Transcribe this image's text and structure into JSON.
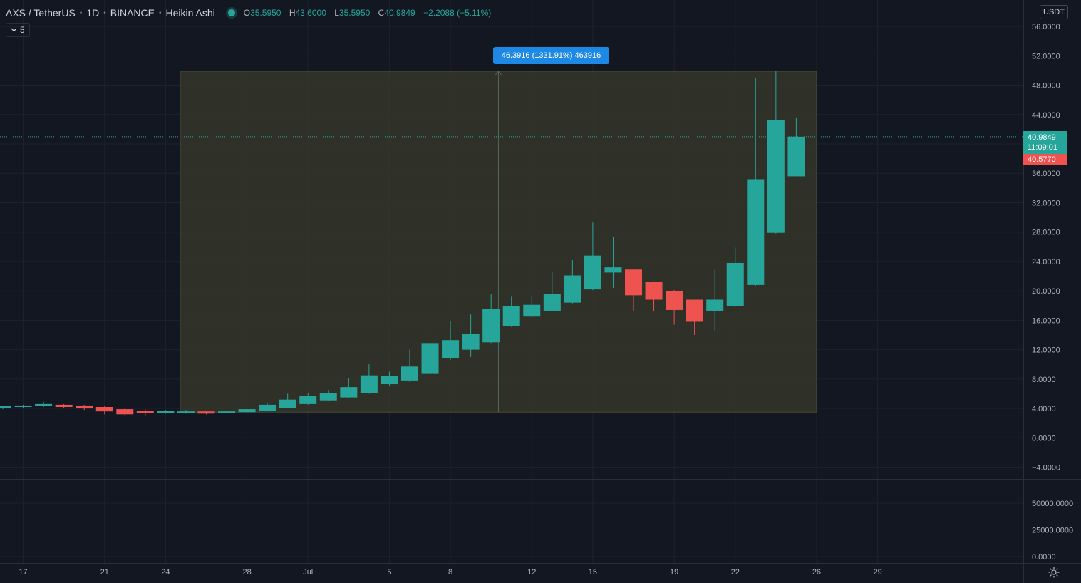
{
  "header": {
    "symbol": "AXS / TetherUS",
    "interval": "1D",
    "exchange": "BINANCE",
    "chart_style": "Heikin Ashi",
    "open_label": "O",
    "open": "35.5950",
    "high_label": "H",
    "high": "43.6000",
    "low_label": "L",
    "low": "35.5950",
    "close_label": "C",
    "close": "40.9849",
    "change": "−2.2088 (−5.11%)"
  },
  "collapse_button": {
    "icon": "chevron-down-icon",
    "count": "5"
  },
  "currency_button": "USDT",
  "measure_label": "46.3916 (1331.91%) 463916",
  "last_price_tag": {
    "price": "40.9849",
    "countdown": "11:09:01"
  },
  "prev_close_tag": "40.5770",
  "colors": {
    "background": "#131722",
    "up": "#26a69a",
    "down": "#ef5350",
    "measure_fill": "#353629",
    "grid": "#1e222d"
  },
  "chart_data": {
    "type": "candlestick",
    "style": "Heikin Ashi",
    "y_ticks": [
      "56.0000",
      "52.0000",
      "48.0000",
      "44.0000",
      "40.0000",
      "36.0000",
      "32.0000",
      "28.0000",
      "24.0000",
      "20.0000",
      "16.0000",
      "12.0000",
      "8.0000",
      "4.0000",
      "0.0000",
      "−4.0000"
    ],
    "ylim": [
      -5.6,
      59.6
    ],
    "x_ticks": [
      {
        "label": "17",
        "day": -13
      },
      {
        "label": "21",
        "day": -9
      },
      {
        "label": "24",
        "day": -6
      },
      {
        "label": "28",
        "day": -2
      },
      {
        "label": "Jul",
        "day": 1
      },
      {
        "label": "5",
        "day": 5
      },
      {
        "label": "8",
        "day": 8
      },
      {
        "label": "12",
        "day": 12
      },
      {
        "label": "15",
        "day": 15
      },
      {
        "label": "19",
        "day": 19
      },
      {
        "label": "22",
        "day": 22
      },
      {
        "label": "26",
        "day": 26
      },
      {
        "label": "29",
        "day": 29
      }
    ],
    "x_day_range": [
      -14.0,
      36.3
    ],
    "measure": {
      "day_start": -5,
      "day_end": 26,
      "price_low": 3.5,
      "price_high": 49.9
    },
    "last_price": 40.9849,
    "candles": [
      {
        "day": -14,
        "o": 4.1,
        "h": 4.3,
        "l": 3.9,
        "c": 4.3
      },
      {
        "day": -13,
        "o": 4.2,
        "h": 4.5,
        "l": 4.1,
        "c": 4.4
      },
      {
        "day": -12,
        "o": 4.3,
        "h": 4.9,
        "l": 4.2,
        "c": 4.6
      },
      {
        "day": -11,
        "o": 4.5,
        "h": 4.6,
        "l": 4.0,
        "c": 4.2
      },
      {
        "day": -10,
        "o": 4.4,
        "h": 4.5,
        "l": 3.8,
        "c": 4.0
      },
      {
        "day": -9,
        "o": 4.2,
        "h": 4.3,
        "l": 3.2,
        "c": 3.6
      },
      {
        "day": -8,
        "o": 3.9,
        "h": 4.0,
        "l": 2.9,
        "c": 3.2
      },
      {
        "day": -7,
        "o": 3.7,
        "h": 3.9,
        "l": 3.0,
        "c": 3.4
      },
      {
        "day": -6,
        "o": 3.4,
        "h": 3.8,
        "l": 3.3,
        "c": 3.7
      },
      {
        "day": -5,
        "o": 3.5,
        "h": 3.8,
        "l": 3.3,
        "c": 3.6
      },
      {
        "day": -4,
        "o": 3.6,
        "h": 3.7,
        "l": 3.2,
        "c": 3.3
      },
      {
        "day": -3,
        "o": 3.4,
        "h": 3.7,
        "l": 3.3,
        "c": 3.6
      },
      {
        "day": -2,
        "o": 3.5,
        "h": 4.0,
        "l": 3.4,
        "c": 3.9
      },
      {
        "day": -1,
        "o": 3.7,
        "h": 4.8,
        "l": 3.6,
        "c": 4.5
      },
      {
        "day": 0,
        "o": 4.1,
        "h": 6.0,
        "l": 4.0,
        "c": 5.2
      },
      {
        "day": 1,
        "o": 4.6,
        "h": 6.1,
        "l": 4.5,
        "c": 5.7
      },
      {
        "day": 2,
        "o": 5.1,
        "h": 6.5,
        "l": 5.0,
        "c": 6.1
      },
      {
        "day": 3,
        "o": 5.5,
        "h": 8.1,
        "l": 5.4,
        "c": 6.9
      },
      {
        "day": 4,
        "o": 6.1,
        "h": 10.0,
        "l": 6.0,
        "c": 8.5
      },
      {
        "day": 5,
        "o": 7.3,
        "h": 9.0,
        "l": 7.1,
        "c": 8.4
      },
      {
        "day": 6,
        "o": 7.8,
        "h": 12.0,
        "l": 7.6,
        "c": 9.7
      },
      {
        "day": 7,
        "o": 8.7,
        "h": 16.6,
        "l": 8.6,
        "c": 12.9
      },
      {
        "day": 8,
        "o": 10.8,
        "h": 15.9,
        "l": 10.6,
        "c": 13.3
      },
      {
        "day": 9,
        "o": 12.0,
        "h": 16.8,
        "l": 11.0,
        "c": 14.1
      },
      {
        "day": 10,
        "o": 13.0,
        "h": 19.6,
        "l": 12.9,
        "c": 17.5
      },
      {
        "day": 11,
        "o": 15.2,
        "h": 19.2,
        "l": 15.1,
        "c": 17.9
      },
      {
        "day": 12,
        "o": 16.5,
        "h": 19.2,
        "l": 16.4,
        "c": 18.1
      },
      {
        "day": 13,
        "o": 17.3,
        "h": 22.6,
        "l": 17.2,
        "c": 19.6
      },
      {
        "day": 14,
        "o": 18.4,
        "h": 24.2,
        "l": 18.3,
        "c": 22.1
      },
      {
        "day": 15,
        "o": 20.2,
        "h": 29.3,
        "l": 20.1,
        "c": 24.8
      },
      {
        "day": 16,
        "o": 22.5,
        "h": 27.3,
        "l": 20.4,
        "c": 23.2
      },
      {
        "day": 17,
        "o": 22.9,
        "h": 22.9,
        "l": 17.2,
        "c": 19.4
      },
      {
        "day": 18,
        "o": 21.2,
        "h": 21.3,
        "l": 17.3,
        "c": 18.8
      },
      {
        "day": 19,
        "o": 20.0,
        "h": 20.1,
        "l": 15.4,
        "c": 17.4
      },
      {
        "day": 20,
        "o": 18.8,
        "h": 18.8,
        "l": 14.0,
        "c": 15.8
      },
      {
        "day": 21,
        "o": 17.3,
        "h": 22.9,
        "l": 14.6,
        "c": 18.8
      },
      {
        "day": 22,
        "o": 17.9,
        "h": 25.9,
        "l": 17.8,
        "c": 23.8
      },
      {
        "day": 23,
        "o": 20.8,
        "h": 49.0,
        "l": 20.7,
        "c": 35.2
      },
      {
        "day": 24,
        "o": 27.9,
        "h": 49.9,
        "l": 27.8,
        "c": 43.3
      },
      {
        "day": 25,
        "o": 35.595,
        "h": 43.6,
        "l": 35.595,
        "c": 40.9849
      }
    ],
    "volume_ticks": [
      "50000.0000",
      "25000.0000",
      "0.0000"
    ],
    "volume_ylim": [
      -6000,
      72000
    ]
  }
}
